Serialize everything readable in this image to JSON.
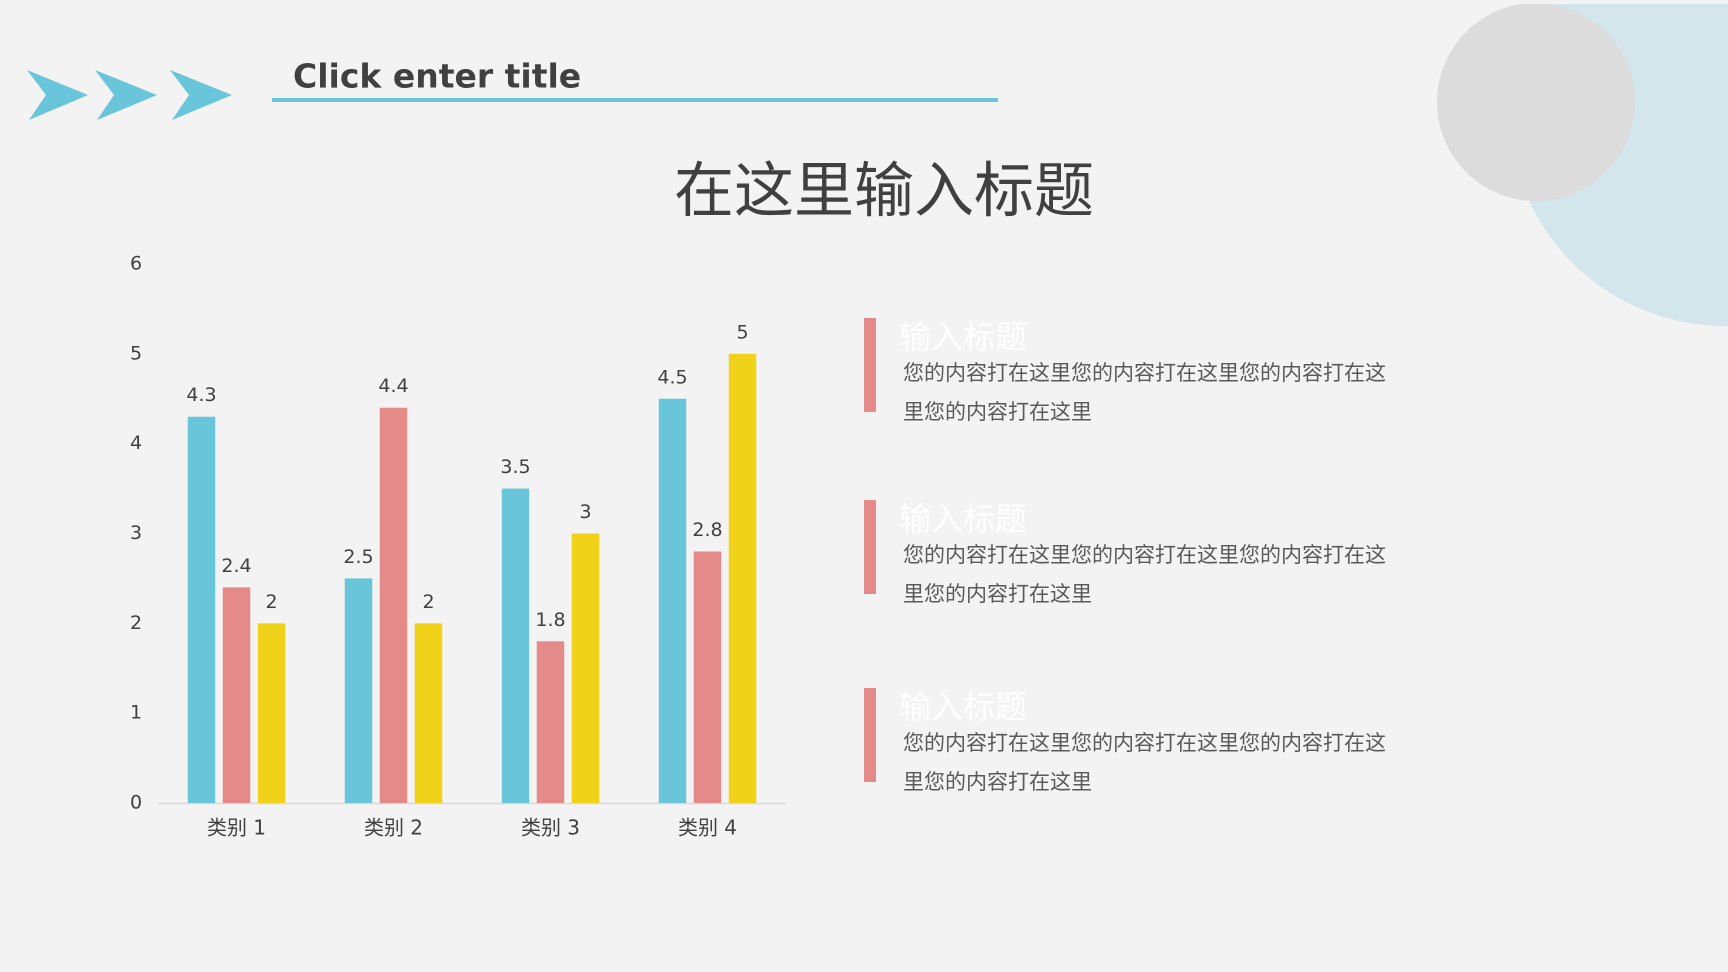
{
  "header": {
    "title": "Click enter title"
  },
  "chart_data": {
    "type": "bar",
    "title": "在这里输入标题",
    "categories": [
      "类别 1",
      "类别 2",
      "类别 3",
      "类别 4"
    ],
    "series": [
      {
        "color": "#69c5d9",
        "values": [
          4.3,
          2.5,
          3.5,
          4.5
        ]
      },
      {
        "color": "#e48a89",
        "values": [
          2.4,
          4.4,
          1.8,
          2.8
        ]
      },
      {
        "color": "#f0d21b",
        "values": [
          2,
          2,
          3,
          5
        ]
      }
    ],
    "ylim": [
      0,
      6
    ],
    "yticks": [
      0,
      1,
      2,
      3,
      4,
      5,
      6
    ],
    "grid": false
  },
  "items": [
    {
      "title": "输入标题",
      "body": "您的内容打在这里您的内容打在这里您的内容打在这里您的内容打在这里"
    },
    {
      "title": "输入标题",
      "body": "您的内容打在这里您的内容打在这里您的内容打在这里您的内容打在这里"
    },
    {
      "title": "输入标题",
      "body": "您的内容打在这里您的内容打在这里您的内容打在这里您的内容打在这里"
    }
  ]
}
